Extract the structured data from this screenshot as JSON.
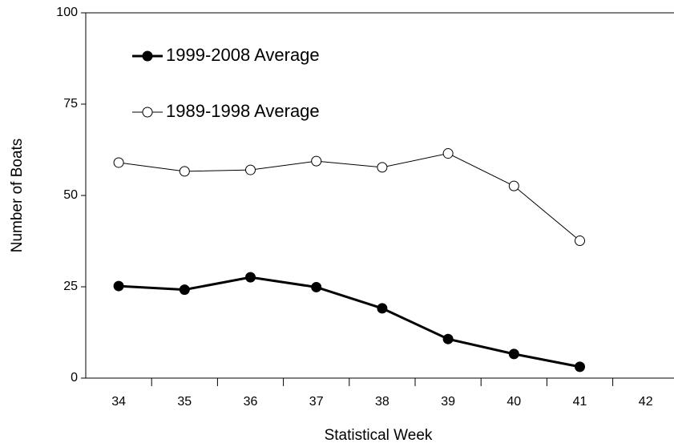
{
  "chart_data": {
    "type": "line",
    "x_label": "Statistical Week",
    "y_label": "Number of Boats",
    "categories": [
      "34",
      "35",
      "36",
      "37",
      "38",
      "39",
      "40",
      "41",
      "42"
    ],
    "series": [
      {
        "name": "1999-2008 Average",
        "color": "#000000",
        "marker": "filled",
        "values": [
          25.2,
          24.2,
          27.6,
          24.9,
          19.1,
          10.7,
          6.6,
          3.1,
          null
        ]
      },
      {
        "name": "1989-1998 Average",
        "color": "#000000",
        "marker": "open",
        "values": [
          59.0,
          56.6,
          57.0,
          59.4,
          57.7,
          61.5,
          52.6,
          37.6,
          null
        ]
      }
    ],
    "ylim": [
      0,
      100
    ],
    "yticks": [
      0,
      25,
      50,
      75,
      100
    ],
    "grid": false
  }
}
